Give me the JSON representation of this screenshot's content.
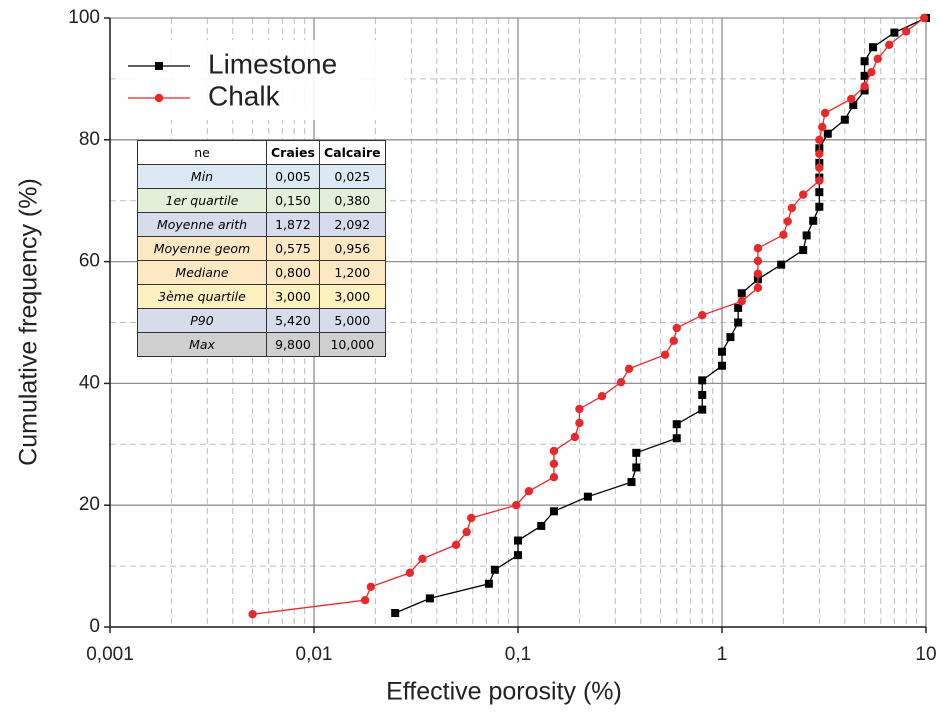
{
  "chart_data": {
    "type": "line",
    "x_label": "Effective porosity (%)",
    "y_label": "Cumulative frequency (%)",
    "xscale": "log",
    "grid": true,
    "legend": "upper left",
    "xlim": [
      0.001,
      10
    ],
    "ylim": [
      0,
      100
    ],
    "xticks": [
      {
        "value": 0.001,
        "label": "0,001"
      },
      {
        "value": 0.01,
        "label": "0,01"
      },
      {
        "value": 0.1,
        "label": "0,1"
      },
      1,
      10
    ],
    "yticks": [
      0,
      20,
      40,
      60,
      80,
      100
    ],
    "series": [
      {
        "name": "Limestone",
        "color": "#000000",
        "marker": "square",
        "x": [
          0.025,
          0.037,
          0.072,
          0.077,
          0.1,
          0.1,
          0.13,
          0.15,
          0.22,
          0.36,
          0.38,
          0.38,
          0.6,
          0.6,
          0.8,
          0.8,
          0.8,
          1.0,
          1.0,
          1.1,
          1.2,
          1.2,
          1.25,
          1.5,
          1.95,
          2.5,
          2.6,
          2.8,
          3.0,
          3.0,
          3.0,
          3.0,
          3.0,
          3.3,
          4.0,
          4.4,
          5.0,
          5.0,
          5.0,
          5.5,
          7.0,
          10
        ],
        "values": [
          2.3,
          4.7,
          7.1,
          9.4,
          11.8,
          14.2,
          16.6,
          19.0,
          21.4,
          23.8,
          26.2,
          28.6,
          31.0,
          33.3,
          35.7,
          38.1,
          40.5,
          42.9,
          45.2,
          47.6,
          50.0,
          52.4,
          54.8,
          57.1,
          59.5,
          61.9,
          64.3,
          66.7,
          69.0,
          71.4,
          73.8,
          76.2,
          78.6,
          81.0,
          83.3,
          85.7,
          88.1,
          90.5,
          92.9,
          95.2,
          97.6,
          100
        ]
      },
      {
        "name": "Chalk",
        "color": "#e8282b",
        "marker": "circle",
        "x": [
          0.005,
          0.0178,
          0.019,
          0.0295,
          0.034,
          0.0497,
          0.056,
          0.059,
          0.098,
          0.113,
          0.15,
          0.15,
          0.15,
          0.19,
          0.2,
          0.2,
          0.258,
          0.32,
          0.35,
          0.526,
          0.58,
          0.6,
          0.8,
          1.25,
          1.5,
          1.5,
          1.5,
          1.5,
          2.0,
          2.1,
          2.2,
          2.5,
          3.0,
          3.0,
          3.0,
          3.0,
          3.1,
          3.2,
          4.3,
          5.0,
          5.4,
          5.8,
          6.6,
          8.0,
          9.8
        ],
        "values": [
          2.1,
          4.4,
          6.6,
          8.9,
          11.2,
          13.5,
          15.6,
          17.9,
          20.0,
          22.3,
          24.6,
          26.8,
          28.9,
          31.2,
          33.5,
          35.8,
          37.9,
          40.2,
          42.4,
          44.7,
          47.0,
          49.1,
          51.2,
          53.5,
          55.7,
          58.0,
          60.1,
          62.2,
          64.4,
          66.6,
          68.8,
          71.0,
          73.3,
          75.4,
          77.7,
          80.0,
          82.1,
          84.4,
          86.7,
          88.8,
          91.1,
          93.3,
          95.6,
          97.8,
          100
        ]
      }
    ]
  },
  "table": {
    "header": [
      "ne",
      "Craies",
      "Calcaire"
    ],
    "rows": [
      [
        "Min",
        "0,005",
        "0,025"
      ],
      [
        "1er quartile",
        "0,150",
        "0,380"
      ],
      [
        "Moyenne arith",
        "1,872",
        "2,092"
      ],
      [
        "Moyenne geom",
        "0,575",
        "0,956"
      ],
      [
        "Mediane",
        "0,800",
        "1,200"
      ],
      [
        "3ème quartile",
        "3,000",
        "3,000"
      ],
      [
        "P90",
        "5,420",
        "5,000"
      ],
      [
        "Max",
        "9,800",
        "10,000"
      ]
    ]
  }
}
